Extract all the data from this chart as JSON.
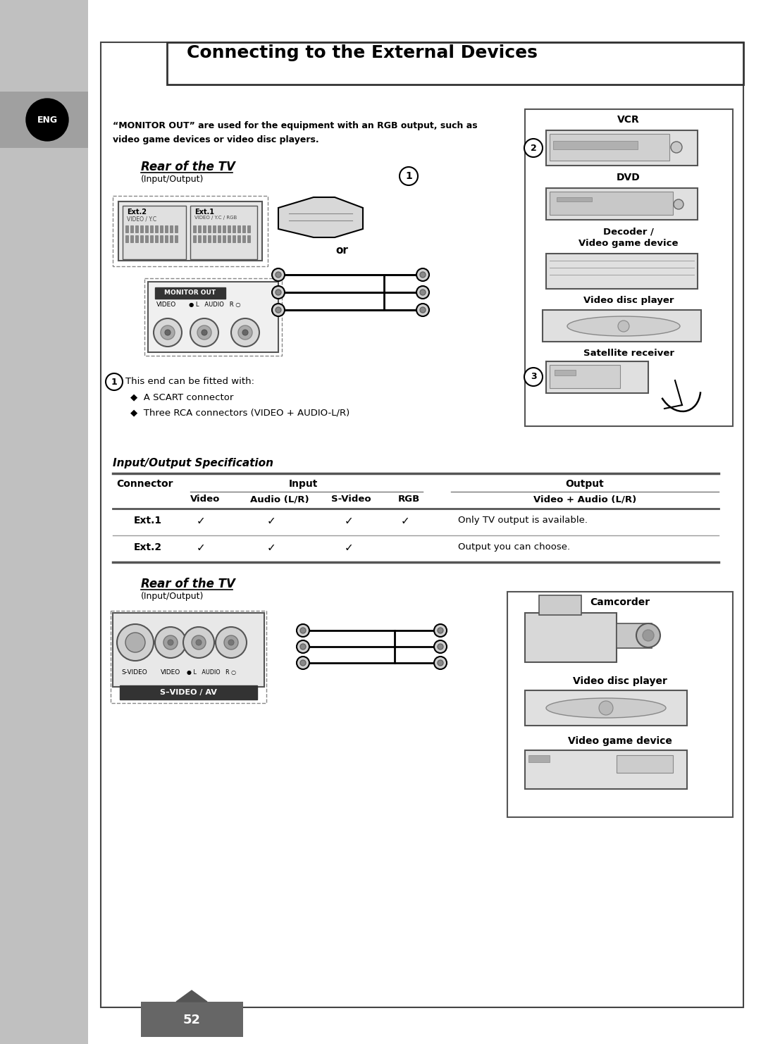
{
  "title": "Connecting to the External Devices",
  "bg_color": "#ffffff",
  "page_number": "52",
  "header_text_1": "“MONITOR OUT” are used for the equipment with an RGB output, such as",
  "header_text_2": "video game devices or video disc players.",
  "rear_tv_title": "Rear of the TV",
  "rear_tv_subtitle": "(Input/Output)",
  "rear_tv_title2": "Rear of the TV",
  "rear_tv_subtitle2": "(Input/Output)",
  "circle_note_1": "This end can be fitted with:",
  "bullet_1": "A SCART connector",
  "bullet_2": "Three RCA connectors (VIDEO + AUDIO-L/R)",
  "table_title": "Input/Output Specification",
  "table_connector": "Connector",
  "table_input": "Input",
  "table_output": "Output",
  "col_video": "Video",
  "col_audio": "Audio (L/R)",
  "col_svideo": "S-Video",
  "col_rgb": "RGB",
  "col_vid_audio": "Video + Audio (L/R)",
  "ext1_label": "Ext.1",
  "ext2_label": "Ext.2",
  "ext1_output": "Only TV output is available.",
  "ext2_output": "Output you can choose.",
  "vcr_label": "VCR",
  "dvd_label": "DVD",
  "decoder_label": "Decoder /",
  "decoder_label2": "Video game device",
  "vidisc_label": "Video disc player",
  "satellite_label": "Satellite receiver",
  "camcorder_label": "Camcorder",
  "vidisc2_label": "Video disc player",
  "vidgame_label": "Video game device",
  "or_text": "or",
  "svideo_av_label": "S–VIDEO / AV",
  "monitor_out_label": "MONITOR OUT"
}
